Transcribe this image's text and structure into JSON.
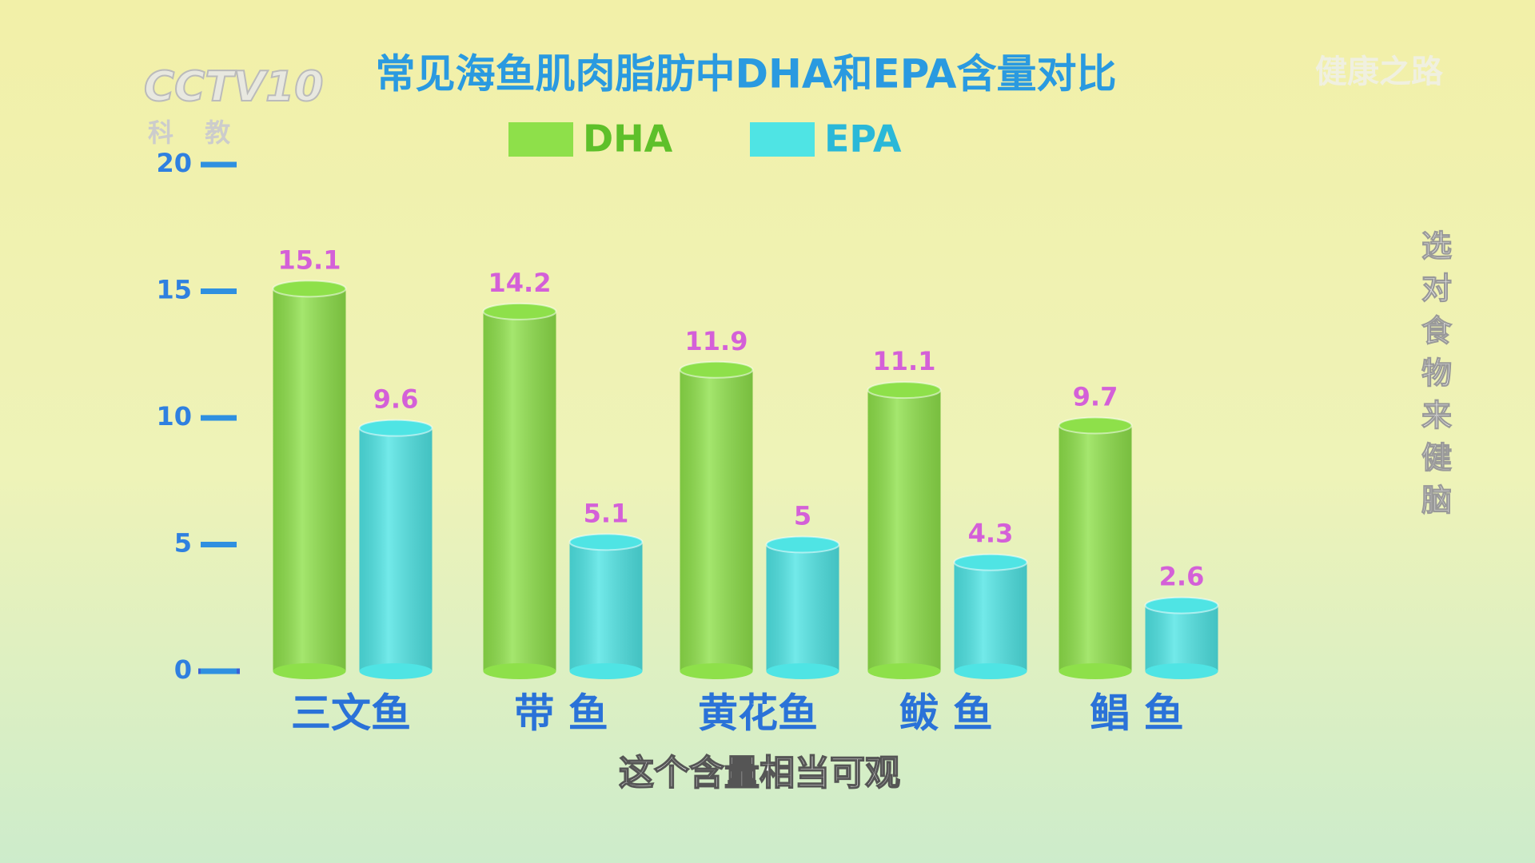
{
  "chart_data": {
    "type": "bar",
    "title": "常见海鱼肌肉脂肪中DHA和EPA含量对比",
    "categories": [
      "三文鱼",
      "带 鱼",
      "黄花鱼",
      "鲅 鱼",
      "鲳 鱼"
    ],
    "series": [
      {
        "name": "DHA",
        "color": "#8ee04a",
        "values": [
          15.1,
          14.2,
          11.9,
          11.1,
          9.7
        ]
      },
      {
        "name": "EPA",
        "color": "#4fe4e4",
        "values": [
          9.6,
          5.1,
          5,
          4.3,
          2.6
        ]
      }
    ],
    "ylim": [
      0,
      20
    ],
    "yticks": [
      0,
      5,
      10,
      15,
      20
    ],
    "grid": false,
    "legend": "top"
  },
  "overlay": {
    "channel_logo": "CCTV10",
    "channel_name": "科 教",
    "program": "健康之路",
    "side_caption": "选对食物来健脑",
    "subtitle": "这个含量相当可观"
  }
}
